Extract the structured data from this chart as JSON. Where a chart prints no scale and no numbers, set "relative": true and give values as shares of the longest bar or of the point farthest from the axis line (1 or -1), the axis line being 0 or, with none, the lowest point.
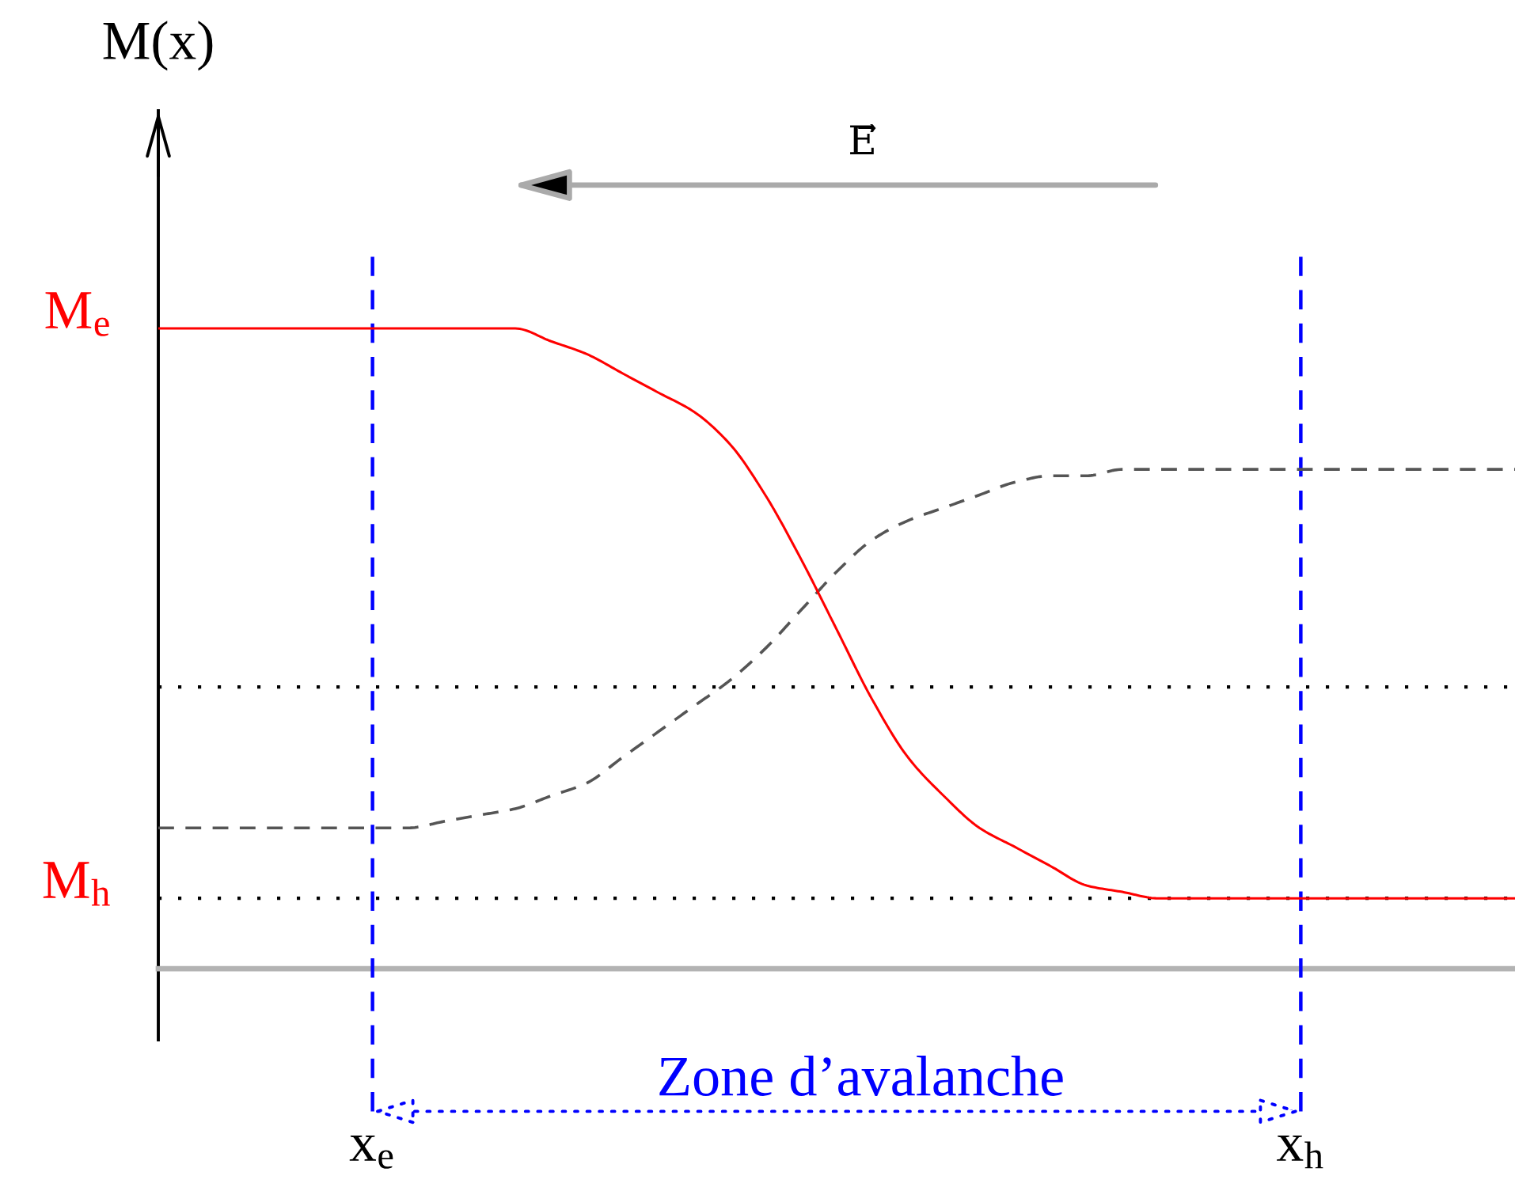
{
  "chart_data": {
    "type": "line",
    "relative": true,
    "ylabel": "M(x)",
    "categories": [
      null,
      null,
      null,
      null,
      null,
      null,
      "x$_{e}$",
      null,
      null,
      null,
      null,
      null,
      null,
      null,
      null,
      null,
      null,
      null,
      null,
      null,
      null,
      null,
      null,
      null,
      null,
      null,
      null,
      null,
      null,
      null,
      null,
      null,
      "x$_{h}$",
      null,
      null,
      null,
      null,
      null,
      null
    ],
    "series": [
      {
        "color": "#ff0000",
        "line_style": "solid",
        "values": [
          1.0,
          1.0,
          1.0,
          1.0,
          1.0,
          1.0,
          1.0,
          1.0,
          1.0,
          1.0,
          1.0,
          0.98,
          0.96,
          0.93,
          0.9,
          0.87,
          0.82,
          0.74,
          0.64,
          0.53,
          0.42,
          0.33,
          0.27,
          0.22,
          0.19,
          0.16,
          0.13,
          0.12,
          0.11,
          0.11,
          0.11,
          0.11,
          0.11,
          0.11,
          0.11,
          0.11,
          0.11,
          0.11,
          0.11
        ]
      },
      {
        "color": "#555555",
        "line_style": "dashed",
        "values": [
          0.22,
          0.22,
          0.22,
          0.22,
          0.22,
          0.22,
          0.22,
          0.22,
          0.23,
          0.24,
          0.25,
          0.27,
          0.29,
          0.33,
          0.37,
          0.41,
          0.45,
          0.5,
          0.56,
          0.62,
          0.67,
          0.7,
          0.72,
          0.74,
          0.76,
          0.77,
          0.77,
          0.78,
          0.78,
          0.78,
          0.78,
          0.78,
          0.78,
          0.78,
          0.78,
          0.78,
          0.78,
          0.78,
          0.78
        ]
      }
    ],
    "annotations": [
      "E⃗",
      "Zone d’avalanche",
      "M$_{e}$",
      "M$_{h}$"
    ],
    "ref_lines": [
      {
        "axis": "y",
        "value": 0.44,
        "color": "#000000",
        "line_style": "dotted"
      },
      {
        "axis": "y",
        "value": 0.11,
        "color": "#000000",
        "line_style": "dotted"
      },
      {
        "axis": "x",
        "value": "x$_{e}$",
        "color": "#0000ff",
        "line_style": "dashed"
      },
      {
        "axis": "x",
        "value": "x$_{h}$",
        "color": "#0000ff",
        "line_style": "dashed"
      }
    ]
  }
}
